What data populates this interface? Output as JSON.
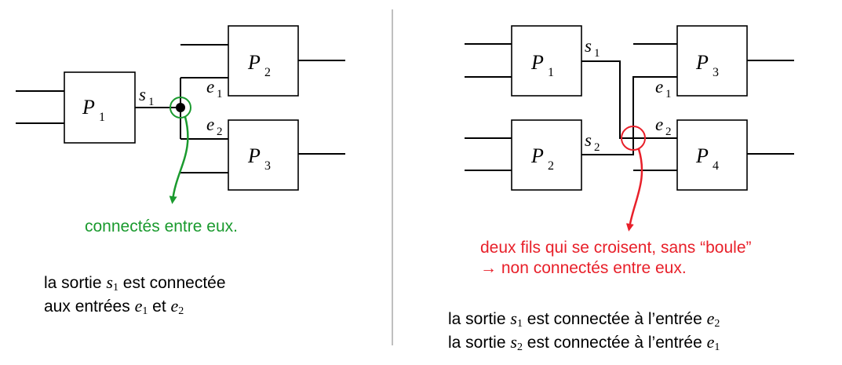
{
  "left": {
    "blocks": [
      {
        "letter": "P",
        "index": "1"
      },
      {
        "letter": "P",
        "index": "2"
      },
      {
        "letter": "P",
        "index": "3"
      }
    ],
    "wire_labels": [
      {
        "letter": "s",
        "index": "1"
      },
      {
        "letter": "e",
        "index": "1"
      },
      {
        "letter": "e",
        "index": "2"
      }
    ],
    "annotation": "connectés entre eux.",
    "annotation_color": "#1a9a2e",
    "caption": {
      "line1_pre": "la sortie ",
      "line1_var": "s",
      "line1_idx": "1",
      "line1_post": " est connectée",
      "line2_pre": "aux entrées ",
      "line2_var1": "e",
      "line2_idx1": "1",
      "line2_mid": " et ",
      "line2_var2": "e",
      "line2_idx2": "2"
    }
  },
  "right": {
    "blocks": [
      {
        "letter": "P",
        "index": "1"
      },
      {
        "letter": "P",
        "index": "2"
      },
      {
        "letter": "P",
        "index": "3"
      },
      {
        "letter": "P",
        "index": "4"
      }
    ],
    "wire_labels": [
      {
        "letter": "s",
        "index": "1"
      },
      {
        "letter": "s",
        "index": "2"
      },
      {
        "letter": "e",
        "index": "1"
      },
      {
        "letter": "e",
        "index": "2"
      }
    ],
    "annotation_line1": "deux fils qui se croisent, sans “boule”",
    "annotation_line2": "→ non connectés entre eux.",
    "annotation_color": "#e8202a",
    "caption": {
      "line1_pre": "la sortie ",
      "line1_var1": "s",
      "line1_idx1": "1",
      "line1_mid": " est connectée à l’entrée ",
      "line1_var2": "e",
      "line1_idx2": "2",
      "line2_pre": "la sortie ",
      "line2_var1": "s",
      "line2_idx1": "2",
      "line2_mid": " est connectée à l’entrée ",
      "line2_var2": "e",
      "line2_idx2": "1"
    }
  },
  "divider_color": "#bfbfbf"
}
